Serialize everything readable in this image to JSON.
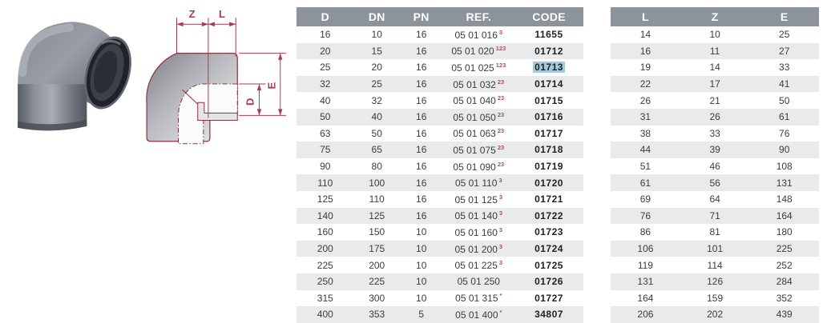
{
  "diagram": {
    "labels": {
      "z": "Z",
      "l": "L",
      "d": "D",
      "e": "E"
    }
  },
  "main_table": {
    "headers": [
      "D",
      "DN",
      "PN",
      "REF.",
      "CODE"
    ],
    "highlighted_code": "01713",
    "rows": [
      {
        "d": "16",
        "dn": "10",
        "pn": "16",
        "ref": "05 01 016",
        "sup": "3",
        "code": "11655",
        "highlight": false
      },
      {
        "d": "20",
        "dn": "15",
        "pn": "16",
        "ref": "05 01 020",
        "sup": "123",
        "code": "01712",
        "highlight": false
      },
      {
        "d": "25",
        "dn": "20",
        "pn": "16",
        "ref": "05 01 025",
        "sup": "123",
        "code": "01713",
        "highlight": true
      },
      {
        "d": "32",
        "dn": "25",
        "pn": "16",
        "ref": "05 01 032",
        "sup": "23",
        "code": "01714",
        "highlight": false
      },
      {
        "d": "40",
        "dn": "32",
        "pn": "16",
        "ref": "05 01 040",
        "sup": "23",
        "code": "01715",
        "highlight": false
      },
      {
        "d": "50",
        "dn": "40",
        "pn": "16",
        "ref": "05 01 050",
        "sup": "23",
        "code": "01716",
        "highlight": false
      },
      {
        "d": "63",
        "dn": "50",
        "pn": "16",
        "ref": "05 01 063",
        "sup": "23",
        "code": "01717",
        "highlight": false
      },
      {
        "d": "75",
        "dn": "65",
        "pn": "16",
        "ref": "05 01 075",
        "sup": "23",
        "code": "01718",
        "highlight": false
      },
      {
        "d": "90",
        "dn": "80",
        "pn": "16",
        "ref": "05 01 090",
        "sup": "23",
        "code": "01719",
        "highlight": false
      },
      {
        "d": "110",
        "dn": "100",
        "pn": "16",
        "ref": "05 01 110",
        "sup": "3",
        "code": "01720",
        "highlight": false
      },
      {
        "d": "125",
        "dn": "110",
        "pn": "16",
        "ref": "05 01 125",
        "sup": "3",
        "code": "01721",
        "highlight": false
      },
      {
        "d": "140",
        "dn": "125",
        "pn": "16",
        "ref": "05 01 140",
        "sup": "3",
        "code": "01722",
        "highlight": false
      },
      {
        "d": "160",
        "dn": "150",
        "pn": "10",
        "ref": "05 01 160",
        "sup": "3",
        "code": "01723",
        "highlight": false
      },
      {
        "d": "200",
        "dn": "175",
        "pn": "10",
        "ref": "05 01 200",
        "sup": "3",
        "code": "01724",
        "highlight": false
      },
      {
        "d": "225",
        "dn": "200",
        "pn": "10",
        "ref": "05 01 225",
        "sup": "3",
        "code": "01725",
        "highlight": false
      },
      {
        "d": "250",
        "dn": "225",
        "pn": "10",
        "ref": "05 01 250",
        "sup": "",
        "code": "01726",
        "highlight": false
      },
      {
        "d": "315",
        "dn": "300",
        "pn": "10",
        "ref": "05 01 315",
        "sup": "*",
        "code": "01727",
        "highlight": false
      },
      {
        "d": "400",
        "dn": "353",
        "pn": "5",
        "ref": "05 01 400",
        "sup": "*",
        "code": "34807",
        "highlight": false
      }
    ]
  },
  "dim_table": {
    "headers": [
      "L",
      "Z",
      "E"
    ],
    "rows": [
      [
        "14",
        "10",
        "25"
      ],
      [
        "16",
        "11",
        "27"
      ],
      [
        "19",
        "14",
        "33"
      ],
      [
        "22",
        "17",
        "41"
      ],
      [
        "26",
        "21",
        "50"
      ],
      [
        "31",
        "26",
        "61"
      ],
      [
        "38",
        "33",
        "76"
      ],
      [
        "44",
        "39",
        "90"
      ],
      [
        "51",
        "46",
        "108"
      ],
      [
        "61",
        "56",
        "131"
      ],
      [
        "69",
        "64",
        "148"
      ],
      [
        "76",
        "71",
        "164"
      ],
      [
        "86",
        "81",
        "180"
      ],
      [
        "106",
        "101",
        "225"
      ],
      [
        "119",
        "114",
        "252"
      ],
      [
        "131",
        "126",
        "284"
      ],
      [
        "164",
        "159",
        "352"
      ],
      [
        "206",
        "202",
        "439"
      ]
    ]
  },
  "colors": {
    "header_bg": "#8c939b",
    "header_text": "#ffffff",
    "row_alt": "#e8eaec",
    "text": "#3c3c3e",
    "code_text": "#1e2024",
    "highlight": "#a2cbe0",
    "marker_red": "#a8505f",
    "diagram_line": "#a63d4f",
    "diagram_outline": "#8c3242"
  }
}
